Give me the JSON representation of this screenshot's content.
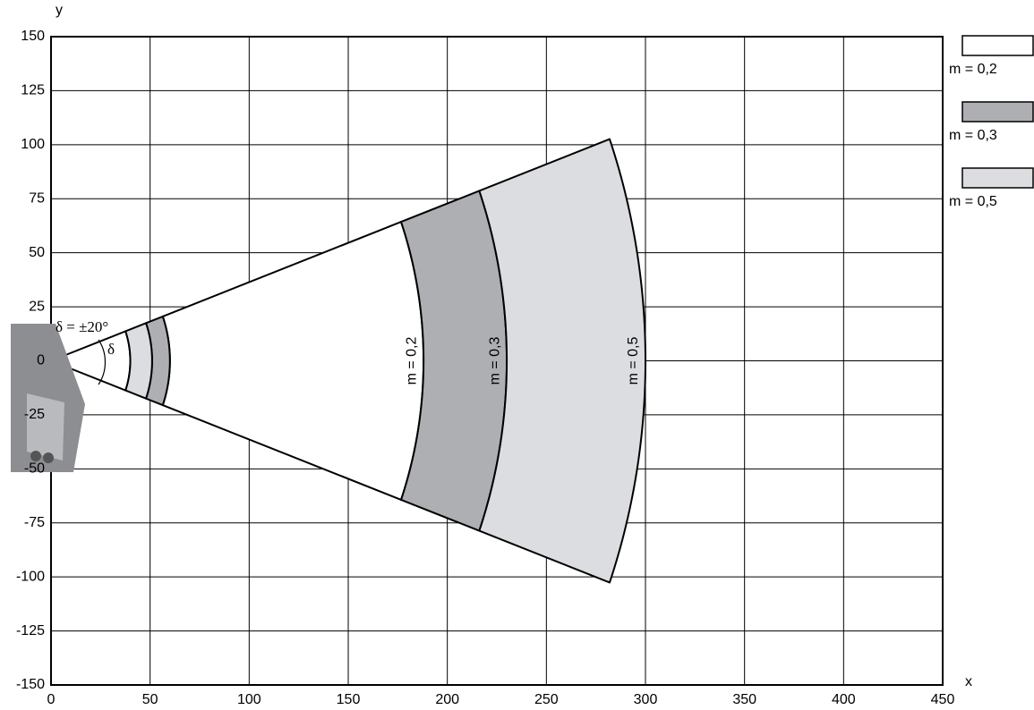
{
  "chart_data": {
    "type": "sector",
    "x_label": "x",
    "y_label": "y",
    "xlim": [
      0,
      450
    ],
    "ylim": [
      -150,
      150
    ],
    "xticks": [
      0,
      50,
      100,
      150,
      200,
      250,
      300,
      350,
      400,
      450
    ],
    "yticks": [
      -150,
      -125,
      -100,
      -75,
      -50,
      -25,
      0,
      25,
      50,
      75,
      100,
      125,
      150
    ],
    "grid": true,
    "half_angle": 20,
    "angle_annotation": "δ = ±20°",
    "angle_symbol": "δ",
    "legend": "right",
    "series": [
      {
        "name": "m = 0,2",
        "color": "#ffffff",
        "ranges": [
          [
            0,
            40
          ],
          [
            60,
            188
          ]
        ]
      },
      {
        "name": "m = 0,3",
        "color": "#aeafb2",
        "ranges": [
          [
            51,
            60
          ],
          [
            188,
            230
          ]
        ]
      },
      {
        "name": "m = 0,5",
        "color": "#dcdde0",
        "ranges": [
          [
            40,
            51
          ],
          [
            230,
            300
          ]
        ]
      }
    ]
  }
}
